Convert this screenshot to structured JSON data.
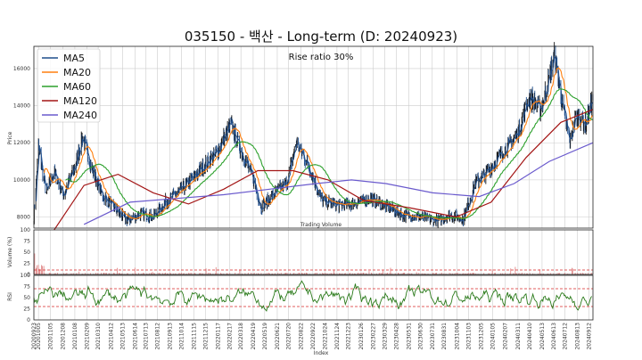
{
  "chart_data": {
    "type": "line",
    "title": "035150 - 백산 - Long-term (D: 20240923)",
    "annotation": "Rise ratio 30%",
    "price_panel": {
      "ylabel": "Price",
      "ylim": [
        7400,
        17200
      ],
      "yticks": [
        8000,
        10000,
        12000,
        14000,
        16000
      ],
      "grid": true,
      "legend_position": "top-left",
      "series": [
        {
          "name": "MA5",
          "color": "#1f4e8c"
        },
        {
          "name": "MA20",
          "color": "#ff7f0e"
        },
        {
          "name": "MA60",
          "color": "#2ca02c"
        },
        {
          "name": "MA120",
          "color": "#a31515"
        },
        {
          "name": "MA240",
          "color": "#6a5acd"
        }
      ],
      "close_points": [
        [
          "2020-09-23",
          8000
        ],
        [
          "2020-10-05",
          11800
        ],
        [
          "2020-10-25",
          9300
        ],
        [
          "2020-11-15",
          10400
        ],
        [
          "2020-12-10",
          9200
        ],
        [
          "2021-01-10",
          10800
        ],
        [
          "2021-01-28",
          12300
        ],
        [
          "2021-02-20",
          10700
        ],
        [
          "2021-03-20",
          9200
        ],
        [
          "2021-04-20",
          8500
        ],
        [
          "2021-05-25",
          7800
        ],
        [
          "2021-07-01",
          8200
        ],
        [
          "2021-08-01",
          8000
        ],
        [
          "2021-09-01",
          8800
        ],
        [
          "2021-10-15",
          9500
        ],
        [
          "2021-12-01",
          10500
        ],
        [
          "2022-01-15",
          11500
        ],
        [
          "2022-02-20",
          13000
        ],
        [
          "2022-03-20",
          11500
        ],
        [
          "2022-04-20",
          10000
        ],
        [
          "2022-05-10",
          8500
        ],
        [
          "2022-06-10",
          9200
        ],
        [
          "2022-07-15",
          9800
        ],
        [
          "2022-08-10",
          12000
        ],
        [
          "2022-09-10",
          10800
        ],
        [
          "2022-10-15",
          8900
        ],
        [
          "2022-12-01",
          8600
        ],
        [
          "2023-01-15",
          8800
        ],
        [
          "2023-02-20",
          9000
        ],
        [
          "2023-04-01",
          8600
        ],
        [
          "2023-05-15",
          8100
        ],
        [
          "2023-07-01",
          8000
        ],
        [
          "2023-08-15",
          7800
        ],
        [
          "2023-09-15",
          8100
        ],
        [
          "2023-10-20",
          7900
        ],
        [
          "2023-11-20",
          9800
        ],
        [
          "2023-12-25",
          10500
        ],
        [
          "2024-02-01",
          11500
        ],
        [
          "2024-03-10",
          12500
        ],
        [
          "2024-04-10",
          14500
        ],
        [
          "2024-05-10",
          13800
        ],
        [
          "2024-06-15",
          16700
        ],
        [
          "2024-07-05",
          14000
        ],
        [
          "2024-07-25",
          12000
        ],
        [
          "2024-08-10",
          13500
        ],
        [
          "2024-08-25",
          13200
        ],
        [
          "2024-09-05",
          13000
        ],
        [
          "2024-09-23",
          14500
        ]
      ],
      "ma240_points": [
        [
          "2021-02-01",
          7600
        ],
        [
          "2021-06-01",
          8800
        ],
        [
          "2021-10-01",
          9000
        ],
        [
          "2022-02-01",
          9200
        ],
        [
          "2022-06-01",
          9500
        ],
        [
          "2022-10-01",
          9800
        ],
        [
          "2023-01-01",
          10000
        ],
        [
          "2023-04-01",
          9800
        ],
        [
          "2023-08-01",
          9300
        ],
        [
          "2023-12-01",
          9100
        ],
        [
          "2024-03-01",
          9800
        ],
        [
          "2024-06-01",
          11000
        ],
        [
          "2024-09-23",
          12000
        ]
      ],
      "ma120_points": [
        [
          "2020-11-15",
          7300
        ],
        [
          "2021-02-01",
          9700
        ],
        [
          "2021-05-01",
          10300
        ],
        [
          "2021-08-01",
          9300
        ],
        [
          "2021-11-01",
          8700
        ],
        [
          "2022-02-01",
          9500
        ],
        [
          "2022-05-01",
          10500
        ],
        [
          "2022-08-01",
          10500
        ],
        [
          "2022-11-01",
          10000
        ],
        [
          "2023-02-01",
          8900
        ],
        [
          "2023-06-01",
          8500
        ],
        [
          "2023-10-01",
          8000
        ],
        [
          "2024-01-01",
          8800
        ],
        [
          "2024-04-01",
          11200
        ],
        [
          "2024-07-01",
          13100
        ],
        [
          "2024-09-23",
          13800
        ]
      ]
    },
    "volume_panel": {
      "ylabel": "Volume (%)",
      "ylim": [
        0,
        100
      ],
      "yticks": [
        0,
        25,
        50,
        75,
        100
      ],
      "title": "Trading Volume",
      "reference_line": 10
    },
    "rsi_panel": {
      "ylabel": "RSI",
      "ylim": [
        0,
        100
      ],
      "yticks": [
        0,
        25,
        50,
        75,
        100
      ],
      "reference_lines": [
        30,
        70
      ]
    },
    "x_axis": {
      "xlabel": "Index",
      "start": "2020-09-23",
      "end": "2024-09-23",
      "tick_labels": [
        "20200923",
        "20201005",
        "20201105",
        "20201208",
        "20210108",
        "20210209",
        "20210310",
        "20210412",
        "20210513",
        "20210614",
        "20210713",
        "20210812",
        "20210913",
        "20211014",
        "20211115",
        "20211215",
        "20220117",
        "20220217",
        "20220318",
        "20220419",
        "20220519",
        "20220621",
        "20220720",
        "20220822",
        "20220922",
        "20221024",
        "20221124",
        "20221223",
        "20230126",
        "20230227",
        "20230329",
        "20230428",
        "20230531",
        "20230630",
        "20230731",
        "20230831",
        "20231004",
        "20231103",
        "20231205",
        "20240105",
        "20240207",
        "20240311",
        "20240410",
        "20240513",
        "20240613",
        "20240712",
        "20240813",
        "20240912"
      ]
    }
  }
}
